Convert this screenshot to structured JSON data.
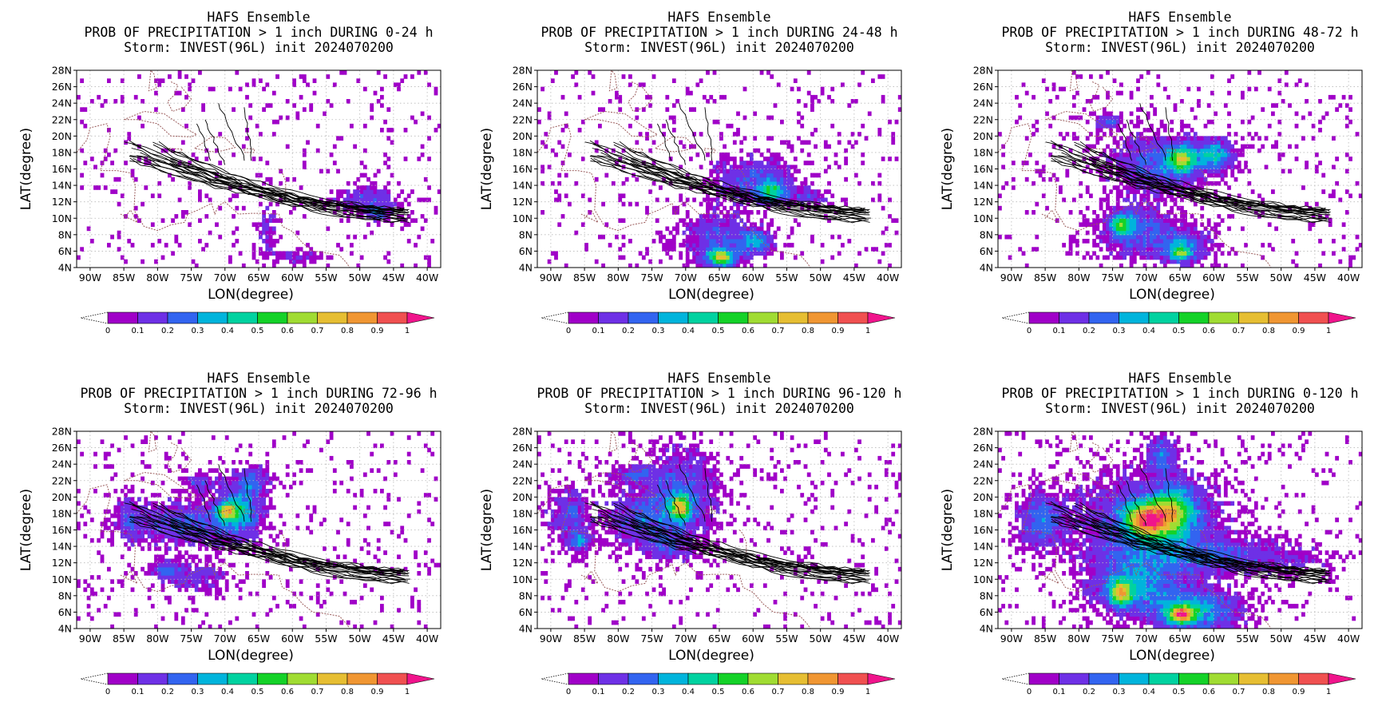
{
  "chart_data": {
    "type": "heatmap",
    "panels": [
      {
        "title": "HAFS Ensemble",
        "subtitle": "PROB OF PRECIPITATION > 1 inch DURING  0-24 h",
        "storm": "Storm: INVEST(96L) init 2024070200",
        "blobs": [
          [
            -49,
            12,
            4.5,
            1.5,
            0.18
          ],
          [
            -64,
            8.5,
            1.5,
            2.5,
            0.12
          ],
          [
            -60,
            5.2,
            4,
            0.8,
            0.12
          ],
          [
            -47.5,
            10.5,
            1.5,
            0.8,
            0.25
          ]
        ]
      },
      {
        "title": "HAFS Ensemble",
        "subtitle": "PROB OF PRECIPITATION > 1 inch DURING 24-48 h",
        "storm": "Storm: INVEST(96L) init 2024070200",
        "blobs": [
          [
            -60,
            14.5,
            6,
            2.5,
            0.2
          ],
          [
            -57.5,
            13,
            2,
            1.2,
            0.4
          ],
          [
            -66,
            7.5,
            5,
            3,
            0.18
          ],
          [
            -65,
            5,
            2,
            1,
            0.65
          ],
          [
            -60,
            7,
            2.5,
            1.5,
            0.3
          ],
          [
            -52,
            12.5,
            3,
            1,
            0.15
          ]
        ]
      },
      {
        "title": "HAFS Ensemble",
        "subtitle": "PROB OF PRECIPITATION > 1 inch DURING 48-72 h",
        "storm": "Storm: INVEST(96L) init 2024070200",
        "blobs": [
          [
            -68,
            16.5,
            7,
            3,
            0.25
          ],
          [
            -65,
            17,
            2,
            1.5,
            0.5
          ],
          [
            -60,
            17.5,
            2.5,
            1.5,
            0.35
          ],
          [
            -72,
            8.5,
            5,
            3,
            0.22
          ],
          [
            -74,
            9,
            1.5,
            1.2,
            0.45
          ],
          [
            -65,
            6.5,
            4,
            2,
            0.25
          ],
          [
            -65,
            5.5,
            1.5,
            0.8,
            0.45
          ],
          [
            -76,
            21.5,
            2,
            0.8,
            0.25
          ]
        ]
      },
      {
        "title": "HAFS Ensemble",
        "subtitle": "PROB OF PRECIPITATION > 1 inch DURING 72-96 h",
        "storm": "Storm: INVEST(96L) init 2024070200",
        "blobs": [
          [
            -76,
            16.5,
            8,
            2.5,
            0.22
          ],
          [
            -68,
            18.5,
            3,
            3,
            0.35
          ],
          [
            -70,
            18,
            1.5,
            1,
            0.5
          ],
          [
            -84.5,
            17.5,
            1.5,
            2.5,
            0.15
          ],
          [
            -75,
            10,
            5,
            1.5,
            0.15
          ],
          [
            -79,
            11,
            2,
            1,
            0.2
          ],
          [
            -74,
            21.5,
            2,
            0.8,
            0.22
          ],
          [
            -66,
            22,
            2,
            1.5,
            0.2
          ]
        ]
      },
      {
        "title": "HAFS Ensemble",
        "subtitle": "PROB OF PRECIPITATION > 1 inch DURING 96-120 h",
        "storm": "Storm: INVEST(96L) init 2024070200",
        "blobs": [
          [
            -71,
            20,
            5,
            5,
            0.22
          ],
          [
            -71,
            18.5,
            1.5,
            1.5,
            0.55
          ],
          [
            -77,
            17,
            5,
            3,
            0.2
          ],
          [
            -87.5,
            17.5,
            3,
            3,
            0.18
          ],
          [
            -73,
            13.5,
            3,
            1.5,
            0.15
          ],
          [
            -78,
            22.5,
            3,
            1,
            0.2
          ],
          [
            -86,
            14.5,
            1.5,
            1,
            0.3
          ]
        ]
      },
      {
        "title": "HAFS Ensemble",
        "subtitle": "PROB OF PRECIPITATION > 1 inch DURING 0-120 h",
        "storm": "Storm: INVEST(96L) init 2024070200",
        "blobs": [
          [
            -70,
            17,
            10,
            5,
            0.25
          ],
          [
            -70,
            17,
            3,
            2,
            0.75
          ],
          [
            -66,
            18,
            3,
            3,
            0.45
          ],
          [
            -60,
            12.5,
            14,
            2,
            0.2
          ],
          [
            -72,
            9,
            6,
            3,
            0.3
          ],
          [
            -63,
            6,
            6,
            2.5,
            0.35
          ],
          [
            -65,
            5.5,
            2,
            1,
            0.7
          ],
          [
            -74,
            8,
            1.5,
            1.5,
            0.6
          ],
          [
            -86,
            17,
            3,
            3,
            0.25
          ],
          [
            -68,
            25,
            2,
            2,
            0.25
          ]
        ]
      }
    ],
    "x_ticks": [
      "90W",
      "85W",
      "80W",
      "75W",
      "70W",
      "65W",
      "60W",
      "55W",
      "50W",
      "45W",
      "40W"
    ],
    "y_ticks": [
      "28N",
      "26N",
      "24N",
      "22N",
      "20N",
      "18N",
      "16N",
      "14N",
      "12N",
      "10N",
      "8N",
      "6N",
      "4N"
    ],
    "xlim": [
      -92,
      -38
    ],
    "ylim": [
      4,
      28
    ],
    "xlabel": "LON(degree)",
    "ylabel": "LAT(degree)",
    "grid": true,
    "colorbar": {
      "labels": [
        "0",
        "0.1",
        "0.2",
        "0.3",
        "0.4",
        "0.5",
        "0.6",
        "0.7",
        "0.8",
        "0.9",
        "1"
      ],
      "colors": [
        "#a000c8",
        "#6e30e6",
        "#3264f0",
        "#00b4dc",
        "#00d2a0",
        "#14d228",
        "#a0dc32",
        "#e6be32",
        "#f09632",
        "#f05050",
        "#f0148c"
      ]
    },
    "track_color": "#000000",
    "coast_color": "#9a5b5b"
  }
}
